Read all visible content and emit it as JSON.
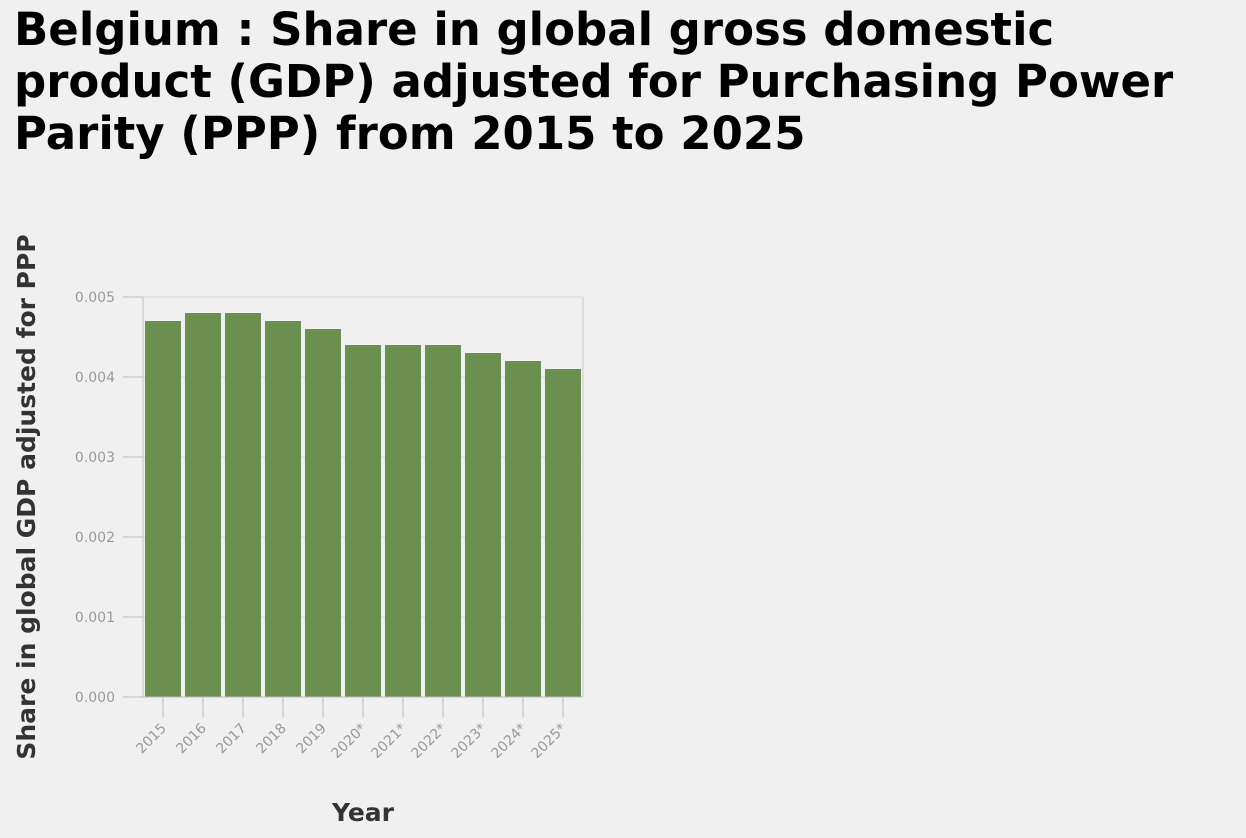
{
  "chart_data": {
    "type": "bar",
    "title": "Belgium : Share in global gross domestic product (GDP) adjusted for Purchasing Power Parity (PPP) from 2015 to 2025",
    "xlabel": "Year",
    "ylabel": "Share in global GDP adjusted for PPP",
    "categories": [
      "2015",
      "2016",
      "2017",
      "2018",
      "2019",
      "2020*",
      "2021*",
      "2022*",
      "2023*",
      "2024*",
      "2025*"
    ],
    "values": [
      0.0047,
      0.0048,
      0.0048,
      0.0047,
      0.0046,
      0.0044,
      0.0044,
      0.0044,
      0.0043,
      0.0042,
      0.0041
    ],
    "ylim": [
      0,
      0.005
    ],
    "yticks": [
      "0.000",
      "0.001",
      "0.002",
      "0.003",
      "0.004",
      "0.005"
    ],
    "grid": true,
    "bar_color": "#6b8f4e"
  }
}
